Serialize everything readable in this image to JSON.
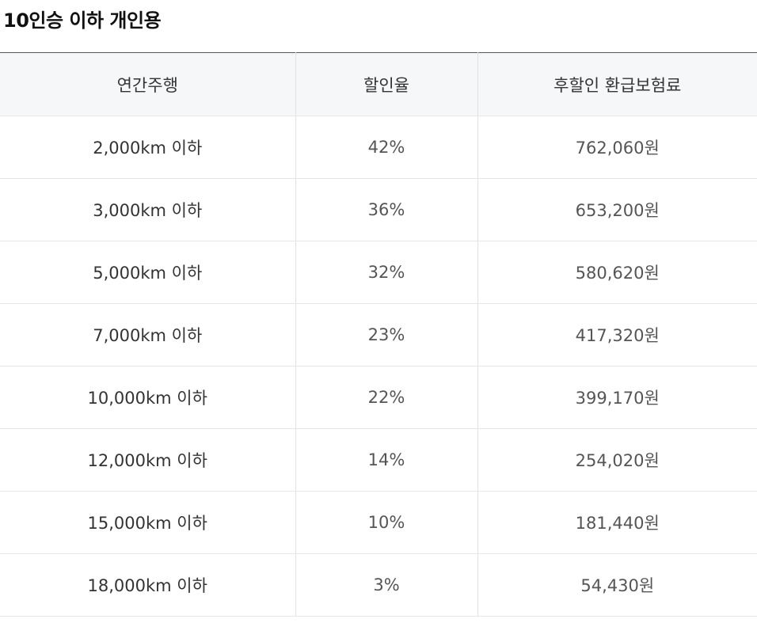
{
  "title": "10인승 이하 개인용",
  "table": {
    "headers": [
      "연간주행",
      "할인율",
      "후할인 환급보험료"
    ],
    "rows": [
      {
        "distance": "2,000km 이하",
        "rate": "42%",
        "premium": "762,060원"
      },
      {
        "distance": "3,000km 이하",
        "rate": "36%",
        "premium": "653,200원"
      },
      {
        "distance": "5,000km 이하",
        "rate": "32%",
        "premium": "580,620원"
      },
      {
        "distance": "7,000km 이하",
        "rate": "23%",
        "premium": "417,320원"
      },
      {
        "distance": "10,000km 이하",
        "rate": "22%",
        "premium": "399,170원"
      },
      {
        "distance": "12,000km 이하",
        "rate": "14%",
        "premium": "254,020원"
      },
      {
        "distance": "15,000km 이하",
        "rate": "10%",
        "premium": "181,440원"
      },
      {
        "distance": "18,000km 이하",
        "rate": "3%",
        "premium": "54,430원"
      }
    ]
  },
  "colors": {
    "header_background": "#f6f7f9",
    "top_border": "#555555",
    "row_divider": "#e6e6e6"
  }
}
